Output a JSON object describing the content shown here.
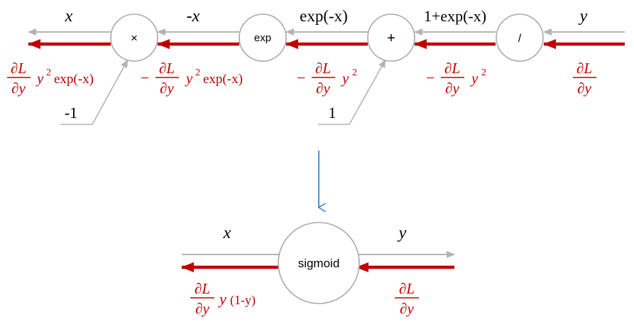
{
  "colors": {
    "forward": "#b4b4b4",
    "backward": "#c00000",
    "label": "#000000",
    "node_stroke": "#aaaaaa",
    "transition_arrow": "#4a7fc1"
  },
  "top_graph": {
    "nodes": {
      "mul": "×",
      "exp": "exp",
      "add": "+",
      "div": "/"
    },
    "forward_labels": {
      "x": "x",
      "neg_x": "-x",
      "exp_neg_x": "exp(-x)",
      "one_plus_exp": "1+exp(-x)",
      "y": "y"
    },
    "constants": {
      "mul_input": "-1",
      "add_input": "1"
    },
    "backward_labels": {
      "at_x": {
        "minus": "",
        "num": "∂L",
        "den": "∂y",
        "factor": "y",
        "power": "2",
        "tail": "exp(-x)"
      },
      "at_neg_x": {
        "minus": "−",
        "num": "∂L",
        "den": "∂y",
        "factor": "y",
        "power": "2",
        "tail": "exp(-x)"
      },
      "at_exp": {
        "minus": "−",
        "num": "∂L",
        "den": "∂y",
        "factor": "y",
        "power": "2"
      },
      "at_sum": {
        "minus": "−",
        "num": "∂L",
        "den": "∂y",
        "factor": "y",
        "power": "2"
      },
      "at_y": {
        "num": "∂L",
        "den": "∂y"
      }
    }
  },
  "bottom_graph": {
    "node": "sigmoid",
    "forward_labels": {
      "x": "x",
      "y": "y"
    },
    "backward_labels": {
      "at_x": {
        "num": "∂L",
        "den": "∂y",
        "factor": "y",
        "tail": "(1-y)"
      },
      "at_y": {
        "num": "∂L",
        "den": "∂y"
      }
    }
  }
}
